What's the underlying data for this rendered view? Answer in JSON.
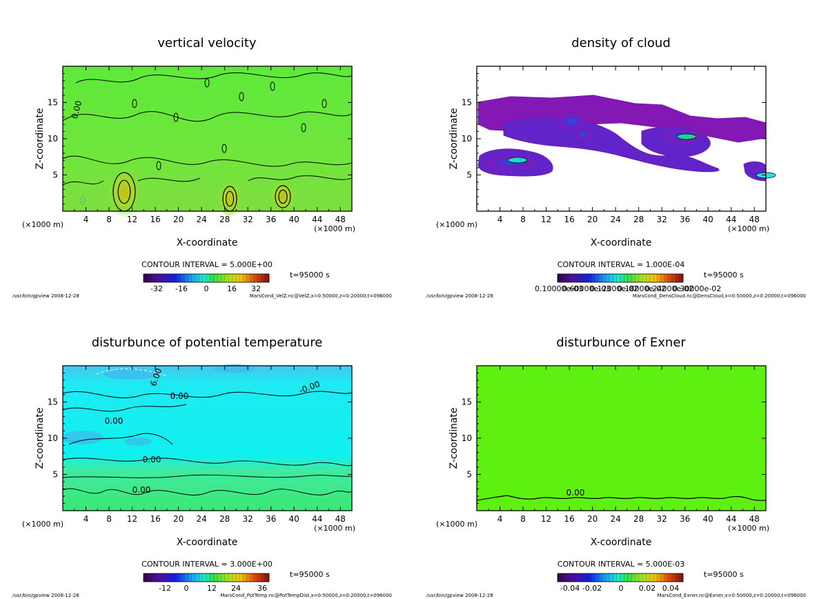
{
  "chart_data": [
    {
      "type": "heatmap",
      "title": "vertical velocity",
      "xlabel": "X-coordinate",
      "ylabel": "Z-coordinate",
      "x_unit": "(×1000 m)",
      "xlim": [
        0,
        50
      ],
      "ylim": [
        0,
        20
      ],
      "x_ticks": [
        "4",
        "8",
        "12",
        "16",
        "20",
        "24",
        "28",
        "32",
        "36",
        "40",
        "44",
        "48"
      ],
      "y_ticks": [
        "5",
        "10",
        "15"
      ],
      "contour_interval": "CONTOUR INTERVAL = 5.000E+00",
      "time": "t=95000 s",
      "colorbar_ticks": [
        "-32",
        "-16",
        "0",
        "16",
        "32"
      ],
      "contour_labels": [
        "0.00"
      ],
      "footer_left": "/usr/bin/gpview  2008-12-28",
      "footer_right": "MarsCond_VelZ.nc@VelZ,x=0:50000,z=0:20000,t=096000",
      "field_color": "#6ee02e",
      "scheme": "velz"
    },
    {
      "type": "heatmap",
      "title": "density of cloud",
      "xlabel": "X-coordinate",
      "ylabel": "Z-coordinate",
      "x_unit": "(×1000 m)",
      "xlim": [
        0,
        50
      ],
      "ylim": [
        0,
        20
      ],
      "x_ticks": [
        "4",
        "8",
        "12",
        "16",
        "20",
        "24",
        "28",
        "32",
        "36",
        "40",
        "44",
        "48"
      ],
      "y_ticks": [
        "5",
        "10",
        "15"
      ],
      "contour_interval": "CONTOUR INTERVAL = 1.000E-04",
      "time": "t=95000 s",
      "colorbar_ticks": [
        "0.10000e-03",
        "0.60000e-03",
        "0.12000e-02",
        "0.18000e-02",
        "0.24000e-02",
        "0.30000e-02"
      ],
      "contour_labels": [],
      "footer_left": "/usr/bin/gpview  2008-12-28",
      "footer_right": "MarsCond_DensCloud.nc@DensCloud,x=0:50000,z=0:20000,t=096000",
      "field_color": "#ffffff",
      "scheme": "cloud"
    },
    {
      "type": "heatmap",
      "title": "disturbunce of potential temperature",
      "xlabel": "X-coordinate",
      "ylabel": "Z-coordinate",
      "x_unit": "(×1000 m)",
      "xlim": [
        0,
        50
      ],
      "ylim": [
        0,
        20
      ],
      "x_ticks": [
        "4",
        "8",
        "12",
        "16",
        "20",
        "24",
        "28",
        "32",
        "36",
        "40",
        "44",
        "48"
      ],
      "y_ticks": [
        "5",
        "10",
        "15"
      ],
      "contour_interval": "CONTOUR INTERVAL = 3.000E+00",
      "time": "t=95000 s",
      "colorbar_ticks": [
        "-12",
        "0",
        "12",
        "24",
        "36"
      ],
      "contour_labels": [
        "0.00",
        "0.00",
        "0.00",
        "0.00",
        "6.00",
        "-0.00"
      ],
      "footer_left": "/usr/bin/gpview  2008-12-28",
      "footer_right": "MarsCond_PotTemp.nc@PotTempDist,x=0:50000,z=0:20000,t=096000",
      "field_color": "#22f0f0",
      "scheme": "ptemp"
    },
    {
      "type": "heatmap",
      "title": "disturbunce of Exner",
      "xlabel": "X-coordinate",
      "ylabel": "Z-coordinate",
      "x_unit": "(×1000 m)",
      "xlim": [
        0,
        50
      ],
      "ylim": [
        0,
        20
      ],
      "x_ticks": [
        "4",
        "8",
        "12",
        "16",
        "20",
        "24",
        "28",
        "32",
        "36",
        "40",
        "44",
        "48"
      ],
      "y_ticks": [
        "5",
        "10",
        "15"
      ],
      "contour_interval": "CONTOUR INTERVAL = 5.000E-03",
      "time": "t=95000 s",
      "colorbar_ticks": [
        "-0.04",
        "-0.02",
        "0",
        "0.02",
        "0.04"
      ],
      "contour_labels": [
        "0.00"
      ],
      "footer_left": "/usr/bin/gpview  2008-12-28",
      "footer_right": "MarsCond_Exner.nc@Exner,x=0:50000,z=0:20000,t=096000",
      "field_color": "#5ef010",
      "scheme": "exner"
    }
  ]
}
